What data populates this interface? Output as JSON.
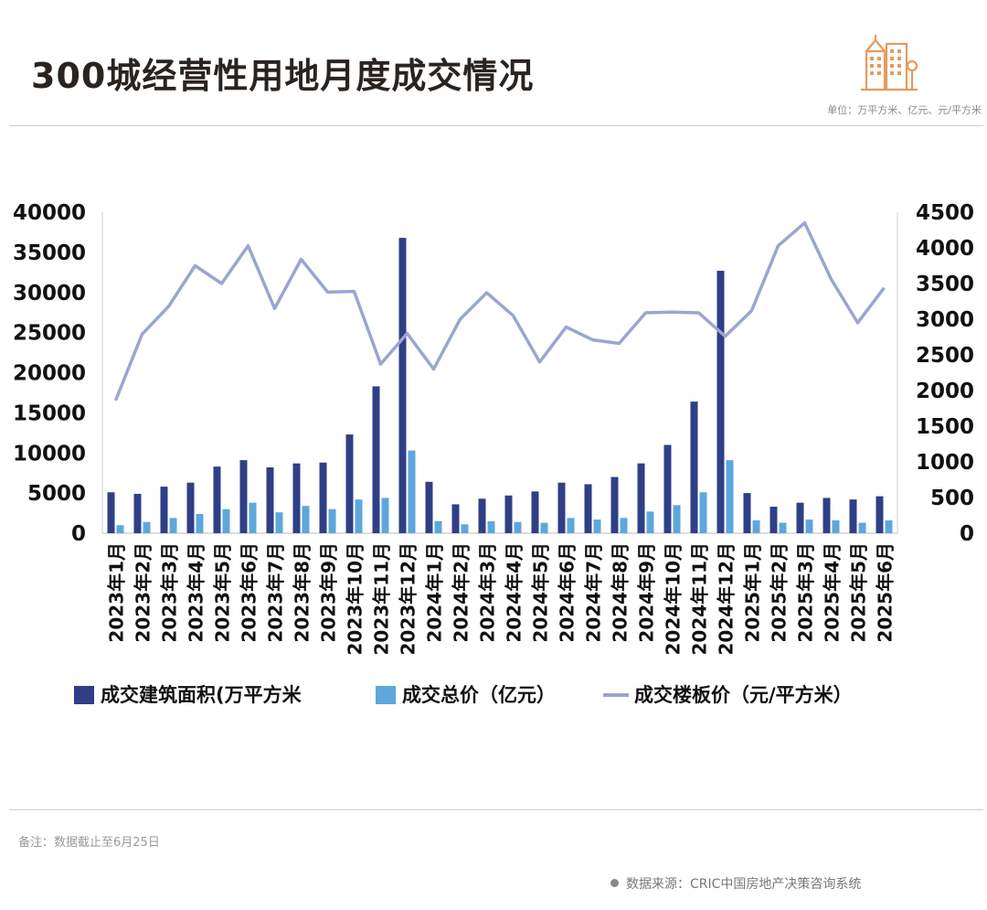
{
  "header": {
    "title": "300城经营性用地月度成交情况",
    "unit": "单位：万平方米、亿元、元/平方米"
  },
  "footer": {
    "note": "备注：数据截止至6月25日",
    "source": "数据来源：CRIC中国房地产决策咨询系统"
  },
  "icons": {
    "logo": "city-buildings-icon",
    "source_bullet": "dot-icon"
  },
  "colors": {
    "area_bar": "#2f3f86",
    "price_bar": "#5ea7dc",
    "floor_price_line": "#9aa6cf",
    "title": "#2a2421",
    "logo": "#e79a5d"
  },
  "chart_data": {
    "type": "bar",
    "categories": [
      "2023年1月",
      "2023年2月",
      "2023年3月",
      "2023年4月",
      "2023年5月",
      "2023年6月",
      "2023年7月",
      "2023年8月",
      "2023年9月",
      "2023年10月",
      "2023年11月",
      "2023年12月",
      "2024年1月",
      "2024年2月",
      "2024年3月",
      "2024年4月",
      "2024年5月",
      "2024年6月",
      "2024年7月",
      "2024年8月",
      "2024年9月",
      "2024年10月",
      "2024年11月",
      "2024年12月",
      "2025年1月",
      "2025年2月",
      "2025年3月",
      "2025年4月",
      "2025年5月",
      "2025年6月"
    ],
    "y_left": {
      "min": 0,
      "max": 40000,
      "ticks": [
        "0",
        "5000",
        "10000",
        "15000",
        "20000",
        "25000",
        "30000",
        "35000",
        "40000"
      ]
    },
    "y_right": {
      "min": 0,
      "max": 4500,
      "ticks": [
        "0",
        "500",
        "1000",
        "1500",
        "2000",
        "2500",
        "3000",
        "3500",
        "4000",
        "4500"
      ]
    },
    "series": [
      {
        "name": "成交建筑面积(万平方米",
        "type": "bar",
        "axis": "left",
        "values": [
          5100,
          4900,
          5800,
          6300,
          8300,
          9100,
          8200,
          8700,
          8800,
          12300,
          18300,
          36800,
          6400,
          3600,
          4300,
          4700,
          5200,
          6300,
          6100,
          7000,
          8700,
          11000,
          16400,
          32700,
          5000,
          3300,
          3800,
          4400,
          4200,
          4600
        ]
      },
      {
        "name": "成交总价（亿元）",
        "type": "bar",
        "axis": "left",
        "values": [
          1000,
          1400,
          1900,
          2400,
          3000,
          3800,
          2600,
          3400,
          3000,
          4200,
          4400,
          10300,
          1500,
          1100,
          1500,
          1400,
          1300,
          1900,
          1700,
          1900,
          2700,
          3500,
          5100,
          9100,
          1600,
          1300,
          1700,
          1600,
          1300,
          1600
        ]
      },
      {
        "name": "成交楼板价（元/平方米）",
        "type": "line",
        "axis": "right",
        "values": [
          1860,
          2790,
          3180,
          3750,
          3500,
          4030,
          3150,
          3840,
          3380,
          3390,
          2370,
          2800,
          2300,
          3000,
          3370,
          3050,
          2400,
          2890,
          2710,
          2660,
          3090,
          3100,
          3090,
          2760,
          3120,
          4030,
          4350,
          3560,
          2950,
          3440
        ]
      }
    ],
    "legend": "bottom",
    "grid": false
  }
}
